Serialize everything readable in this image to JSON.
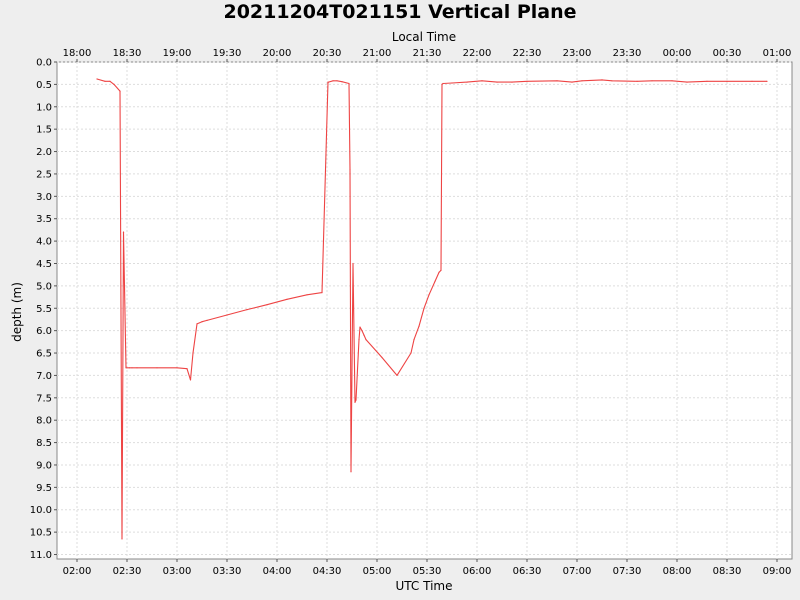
{
  "chart_data": {
    "type": "line",
    "title": "20211204T021151 Vertical Plane",
    "xlabel": "UTC Time",
    "x2label": "Local Time",
    "ylabel": "depth (m)",
    "x_unit": "hours (UTC)",
    "xlim": [
      1.8,
      9.15
    ],
    "ylim": [
      0.0,
      11.1
    ],
    "y_inverted": true,
    "grid": true,
    "colors": {
      "series": "#ee4444",
      "plot_bg": "#ffffff",
      "page_bg": "#eeeeee",
      "grid": "#dddddd"
    },
    "x_ticks": [
      {
        "v": 2.0,
        "label": "02:00"
      },
      {
        "v": 2.5,
        "label": "02:30"
      },
      {
        "v": 3.0,
        "label": "03:00"
      },
      {
        "v": 3.5,
        "label": "03:30"
      },
      {
        "v": 4.0,
        "label": "04:00"
      },
      {
        "v": 4.5,
        "label": "04:30"
      },
      {
        "v": 5.0,
        "label": "05:00"
      },
      {
        "v": 5.5,
        "label": "05:30"
      },
      {
        "v": 6.0,
        "label": "06:00"
      },
      {
        "v": 6.5,
        "label": "06:30"
      },
      {
        "v": 7.0,
        "label": "07:00"
      },
      {
        "v": 7.5,
        "label": "07:30"
      },
      {
        "v": 8.0,
        "label": "08:00"
      },
      {
        "v": 8.5,
        "label": "08:30"
      },
      {
        "v": 9.0,
        "label": "09:00"
      }
    ],
    "x2_ticks": [
      {
        "v": 2.0,
        "label": "18:00"
      },
      {
        "v": 2.5,
        "label": "18:30"
      },
      {
        "v": 3.0,
        "label": "19:00"
      },
      {
        "v": 3.5,
        "label": "19:30"
      },
      {
        "v": 4.0,
        "label": "20:00"
      },
      {
        "v": 4.5,
        "label": "20:30"
      },
      {
        "v": 5.0,
        "label": "21:00"
      },
      {
        "v": 5.5,
        "label": "21:30"
      },
      {
        "v": 6.0,
        "label": "22:00"
      },
      {
        "v": 6.5,
        "label": "22:30"
      },
      {
        "v": 7.0,
        "label": "23:00"
      },
      {
        "v": 7.5,
        "label": "23:30"
      },
      {
        "v": 8.0,
        "label": "00:00"
      },
      {
        "v": 8.5,
        "label": "00:30"
      },
      {
        "v": 9.0,
        "label": "01:00"
      }
    ],
    "y_ticks": [
      "0.0",
      "0.5",
      "1.0",
      "1.5",
      "2.0",
      "2.5",
      "3.0",
      "3.5",
      "4.0",
      "4.5",
      "5.0",
      "5.5",
      "6.0",
      "6.5",
      "7.0",
      "7.5",
      "8.0",
      "8.5",
      "9.0",
      "9.5",
      "10.0",
      "10.5",
      "11.0"
    ],
    "series": [
      {
        "x": [
          2.2,
          2.28,
          2.33,
          2.37,
          2.43,
          2.45,
          2.465,
          2.49,
          2.525,
          2.55,
          2.6,
          2.8,
          3.0,
          3.1,
          3.135,
          3.16,
          3.2,
          3.25,
          3.3,
          3.5,
          3.7,
          3.9,
          4.1,
          4.3,
          4.45,
          4.51,
          4.515,
          4.56,
          4.6,
          4.65,
          4.72,
          4.73,
          4.74,
          4.76,
          4.78,
          4.79,
          4.82,
          4.83,
          4.85,
          4.87,
          4.89,
          5.05,
          5.2,
          5.34,
          5.37,
          5.42,
          5.47,
          5.52,
          5.58,
          5.62,
          5.64,
          5.65,
          5.66,
          5.75,
          5.9,
          6.05,
          6.2,
          6.35,
          6.5,
          6.8,
          6.95,
          7.05,
          7.25,
          7.35,
          7.6,
          7.75,
          7.95,
          8.1,
          8.3,
          8.5,
          8.75,
          8.9
        ],
        "y": [
          0.38,
          0.43,
          0.43,
          0.5,
          0.65,
          10.65,
          3.8,
          6.83,
          6.83,
          6.83,
          6.83,
          6.83,
          6.83,
          6.85,
          7.1,
          6.5,
          5.85,
          5.8,
          5.77,
          5.65,
          5.53,
          5.42,
          5.3,
          5.2,
          5.15,
          0.45,
          0.45,
          0.42,
          0.42,
          0.44,
          0.48,
          2.4,
          9.15,
          4.5,
          7.6,
          7.55,
          6.2,
          5.92,
          6.0,
          6.1,
          6.2,
          6.6,
          7.0,
          6.5,
          6.2,
          5.9,
          5.5,
          5.2,
          4.9,
          4.7,
          4.65,
          0.5,
          0.48,
          0.47,
          0.45,
          0.42,
          0.45,
          0.45,
          0.43,
          0.42,
          0.45,
          0.42,
          0.4,
          0.42,
          0.43,
          0.42,
          0.42,
          0.45,
          0.43,
          0.43,
          0.43,
          0.43
        ]
      }
    ]
  }
}
